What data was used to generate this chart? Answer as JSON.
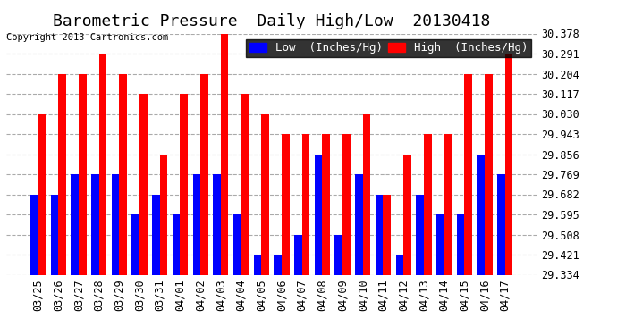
{
  "title": "Barometric Pressure  Daily High/Low  20130418",
  "copyright": "Copyright 2013 Cartronics.com",
  "categories": [
    "03/25",
    "03/26",
    "03/27",
    "03/28",
    "03/29",
    "03/30",
    "03/31",
    "04/01",
    "04/02",
    "04/03",
    "04/04",
    "04/05",
    "04/06",
    "04/07",
    "04/08",
    "04/09",
    "04/10",
    "04/11",
    "04/12",
    "04/13",
    "04/14",
    "04/15",
    "04/16",
    "04/17"
  ],
  "low_values": [
    29.682,
    29.682,
    29.769,
    29.769,
    29.769,
    29.595,
    29.682,
    29.595,
    29.769,
    29.769,
    29.595,
    29.421,
    29.421,
    29.508,
    29.856,
    29.508,
    29.769,
    29.682,
    29.421,
    29.682,
    29.595,
    29.595,
    29.856,
    29.769
  ],
  "high_values": [
    30.03,
    30.204,
    30.204,
    30.291,
    30.204,
    30.117,
    29.856,
    30.117,
    30.204,
    30.378,
    30.117,
    30.03,
    29.943,
    29.943,
    29.943,
    29.943,
    30.03,
    29.682,
    29.856,
    29.943,
    29.943,
    30.204,
    30.204,
    30.291
  ],
  "ylim_min": 29.334,
  "ylim_max": 30.378,
  "yticks": [
    29.334,
    29.421,
    29.508,
    29.595,
    29.682,
    29.769,
    29.856,
    29.943,
    30.03,
    30.117,
    30.204,
    30.291,
    30.378
  ],
  "bar_color_low": "#0000ff",
  "bar_color_high": "#ff0000",
  "background_color": "#ffffff",
  "grid_color": "#aaaaaa",
  "title_fontsize": 13,
  "tick_fontsize": 8.5,
  "legend_fontsize": 9
}
